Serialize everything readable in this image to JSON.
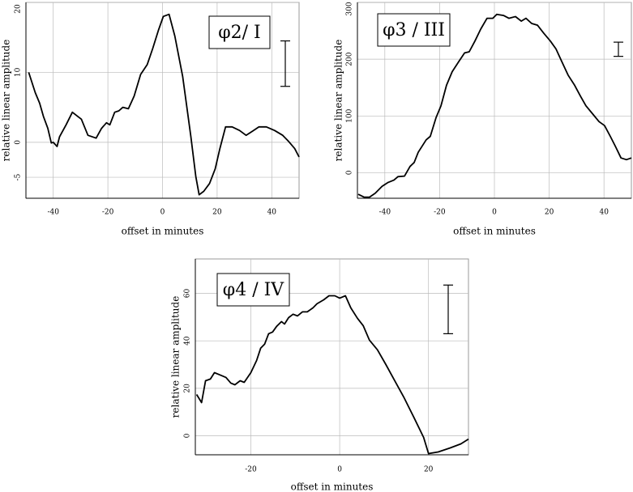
{
  "chart_data": [
    {
      "type": "line",
      "title": "φ2/ I",
      "xlabel": "offset in minutes",
      "ylabel": "relative linear amplitude",
      "color": "#000000",
      "grid": true,
      "xlim": [
        -50,
        50
      ],
      "ylim": [
        -8,
        20
      ],
      "xticks": [
        -40,
        -20,
        0,
        20,
        40
      ],
      "yticks": [
        20,
        10,
        0,
        -5
      ],
      "scale_bar": [
        8,
        14.5
      ],
      "x": [
        -49,
        -46.6,
        -45,
        -43.6,
        -42,
        -40.7,
        -40,
        -38.6,
        -37.7,
        -35.3,
        -33,
        -31,
        -29.7,
        -27.3,
        -24.3,
        -22.3,
        -20.5,
        -19.3,
        -17.5,
        -16,
        -14.5,
        -12.5,
        -10.4,
        -8,
        -5.6,
        -3.6,
        -1.5,
        0.3,
        2.4,
        4.5,
        7.4,
        10.4,
        12.2,
        13.4,
        15.1,
        17.2,
        19.3,
        21,
        23.1,
        25.5,
        28.2,
        30.6,
        33,
        35.3,
        38,
        41,
        44,
        46,
        48.4,
        50
      ],
      "values": [
        10,
        7.1,
        5.6,
        3.7,
        2,
        -0.1,
        0,
        -0.6,
        0.8,
        2.5,
        4.3,
        3.7,
        3.3,
        1,
        0.6,
        2,
        2.8,
        2.5,
        4.3,
        4.5,
        5,
        4.8,
        6.6,
        9.7,
        11.1,
        13.4,
        16,
        18,
        18.3,
        15.2,
        9.4,
        0.8,
        -4.9,
        -7.5,
        -7,
        -5.9,
        -3.8,
        -0.9,
        2.2,
        2.2,
        1.7,
        1,
        1.6,
        2.2,
        2.2,
        1.7,
        1,
        0.2,
        -0.9,
        -2.1
      ]
    },
    {
      "type": "line",
      "title": "φ3 / III",
      "xlabel": "offset in minutes",
      "ylabel": "relative linear amplitude",
      "color": "#000000",
      "grid": true,
      "xlim": [
        -50,
        50
      ],
      "ylim": [
        -45,
        300
      ],
      "xticks": [
        -40,
        -20,
        0,
        20,
        40
      ],
      "yticks": [
        300,
        200,
        100,
        0
      ],
      "scale_bar": [
        205,
        230
      ],
      "x": [
        -49.7,
        -47.6,
        -45.6,
        -43.5,
        -41,
        -38.8,
        -36.7,
        -35.2,
        -32.8,
        -30.8,
        -29.3,
        -27.8,
        -24.9,
        -23.4,
        -21.3,
        -19.5,
        -17.5,
        -15.4,
        -13,
        -10.9,
        -9.2,
        -7.1,
        -5,
        -2.7,
        -0.6,
        0.9,
        3.3,
        5.3,
        7.7,
        9.8,
        11.5,
        13.6,
        15.7,
        18,
        20.4,
        22.5,
        24.6,
        26.9,
        29.3,
        31.4,
        33.4,
        35.8,
        38.2,
        40.2,
        42.3,
        44.1,
        46.2,
        48.2,
        50
      ],
      "values": [
        -38,
        -43,
        -43,
        -36,
        -24,
        -17,
        -13,
        -7,
        -6,
        11,
        18,
        36,
        58,
        64,
        97,
        118,
        154,
        178,
        196,
        211,
        213,
        232,
        253,
        272,
        272,
        279,
        277,
        272,
        275,
        267,
        272,
        263,
        260,
        246,
        232,
        218,
        196,
        172,
        154,
        135,
        118,
        104,
        90,
        83,
        64,
        47,
        26,
        23,
        26
      ]
    },
    {
      "type": "line",
      "title": "φ4 / IV",
      "xlabel": "offset in minutes",
      "ylabel": "relative linear amplitude",
      "color": "#000000",
      "grid": true,
      "xlim": [
        -32.5,
        29
      ],
      "ylim": [
        -8,
        74.5
      ],
      "xticks": [
        -20,
        0,
        20
      ],
      "yticks": [
        60,
        40,
        20,
        0
      ],
      "scale_bar": [
        43,
        63.5
      ],
      "x": [
        -32.2,
        -31.1,
        -30.2,
        -29.1,
        -28.2,
        -26.9,
        -25.6,
        -24.5,
        -23.6,
        -22.4,
        -21.5,
        -20,
        -18.7,
        -17.8,
        -16.9,
        -16,
        -15.1,
        -14.2,
        -13.1,
        -12.4,
        -11.5,
        -10.5,
        -9.5,
        -8.4,
        -7.3,
        -6,
        -5.1,
        -3.6,
        -2.4,
        -1.1,
        0,
        1.3,
        2.5,
        4,
        5.3,
        6.7,
        8.5,
        10.4,
        12.2,
        14.4,
        16.7,
        18.9,
        20,
        22.2,
        24.9,
        27.3,
        29
      ],
      "values": [
        17.4,
        14,
        23.2,
        23.9,
        26.6,
        25.6,
        24.6,
        22.2,
        21.5,
        23.2,
        22.5,
        26.6,
        31.7,
        36.9,
        38.6,
        43,
        43.7,
        46.1,
        48.1,
        47.1,
        49.8,
        51.2,
        50.5,
        52.2,
        52.2,
        53.9,
        55.6,
        57.3,
        59,
        59,
        58,
        59,
        53.9,
        49.5,
        46.4,
        40.3,
        36.2,
        30,
        23.9,
        16.4,
        7.8,
        -0.7,
        -7.5,
        -6.8,
        -5.1,
        -3.4,
        -1.4
      ]
    }
  ]
}
